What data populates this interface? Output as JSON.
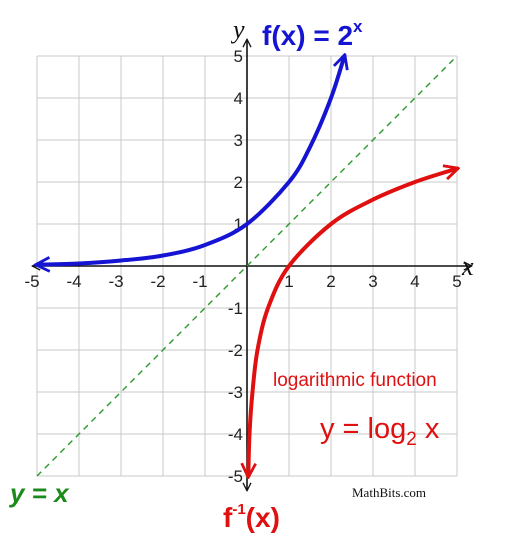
{
  "chart_data": {
    "type": "line",
    "xlabel": "x",
    "ylabel": "y",
    "xlim": [
      -5,
      5
    ],
    "ylim": [
      -5,
      5
    ],
    "grid": true,
    "x_ticks": [
      "-5",
      "-4",
      "-3",
      "-2",
      "-1",
      "1",
      "2",
      "3",
      "4",
      "5"
    ],
    "y_ticks": [
      "5",
      "4",
      "3",
      "2",
      "1",
      "-1",
      "-2",
      "-3",
      "-4",
      "-5"
    ],
    "colors": {
      "exponential": "#1414d2",
      "logarithmic": "#e01010",
      "identity": "#2a9a2a",
      "grid": "#c8c8c8"
    },
    "series": [
      {
        "label": "f(x) = 2^x",
        "x": [
          -5,
          -4,
          -3,
          -2,
          -1,
          0,
          1,
          1.5,
          2,
          2.32
        ],
        "y": [
          0.03,
          0.06,
          0.13,
          0.25,
          0.5,
          1,
          2,
          2.83,
          4,
          5
        ]
      },
      {
        "label": "f⁻¹(x)",
        "x": [
          0.03,
          0.06,
          0.13,
          0.25,
          0.5,
          1,
          2,
          3,
          4,
          5
        ],
        "y": [
          -5,
          -4,
          -3,
          -2,
          -1,
          0,
          1,
          1.58,
          2,
          2.32
        ]
      },
      {
        "label": "y = x",
        "x": [
          -5,
          5
        ],
        "y": [
          -5,
          5
        ]
      }
    ],
    "annotations": {
      "exp_title": {
        "base": "f(x) = 2",
        "sup": "x"
      },
      "log_note": "logarithmic function",
      "log_formula": {
        "prefix": "y = log",
        "sub": "2",
        "suffix": " x"
      },
      "inverse_label": {
        "base": "f",
        "sup": "-1",
        "suffix": "(x)"
      },
      "identity_label": "y = x",
      "credit": "MathBits.com"
    }
  }
}
